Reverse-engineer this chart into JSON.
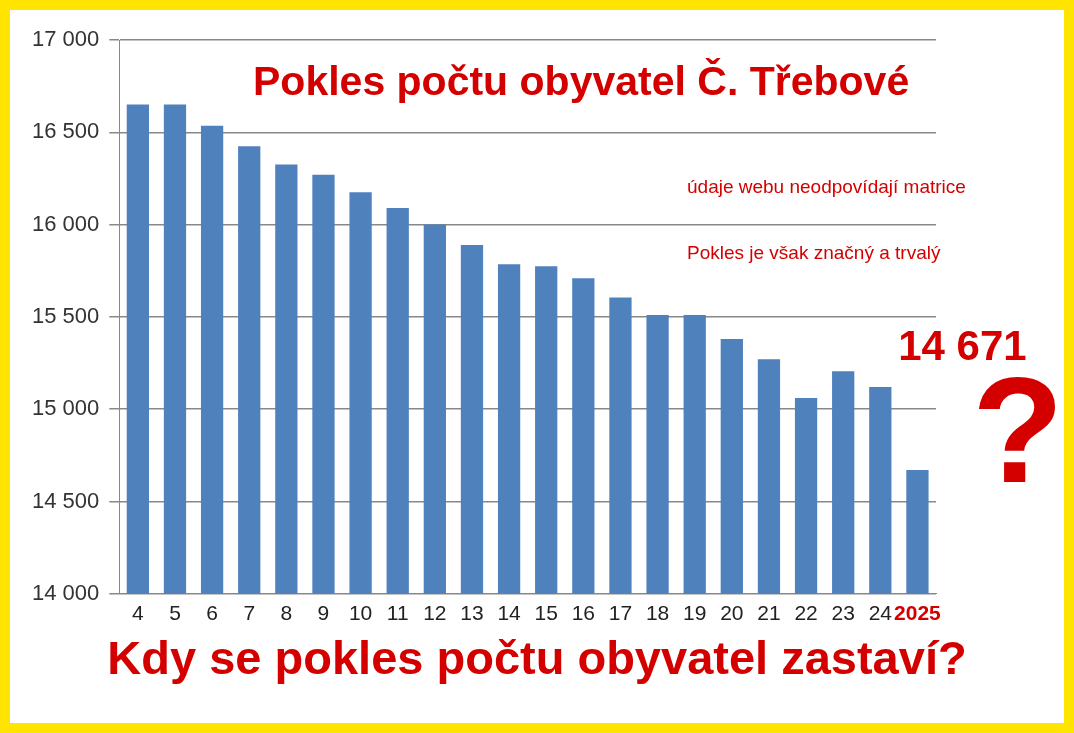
{
  "chart_data": {
    "type": "bar",
    "title": "Pokles počtu obyvatel Č. Třebové",
    "subtitle": "Kdy se pokles počtu obyvatel zastaví?",
    "categories": [
      "4",
      "5",
      "6",
      "7",
      "8",
      "9",
      "10",
      "11",
      "12",
      "13",
      "14",
      "15",
      "16",
      "17",
      "18",
      "19",
      "20",
      "21",
      "22",
      "23",
      "24",
      "2025"
    ],
    "values": [
      16650,
      16650,
      16535,
      16425,
      16325,
      16270,
      16175,
      16090,
      16000,
      15890,
      15785,
      15775,
      15710,
      15605,
      15510,
      15510,
      15380,
      15270,
      15060,
      15205,
      15120,
      14671
    ],
    "color": "#4f81bd",
    "ylim": [
      14000,
      17000
    ],
    "yticks": [
      {
        "value": 14000,
        "label": "14 000"
      },
      {
        "value": 14500,
        "label": "14 500"
      },
      {
        "value": 15000,
        "label": "15 000"
      },
      {
        "value": 15500,
        "label": "15 500"
      },
      {
        "value": 16000,
        "label": "16 000"
      },
      {
        "value": 16500,
        "label": "16 500"
      },
      {
        "value": 17000,
        "label": "17 000"
      }
    ],
    "grid": "y",
    "annotations": [
      "údaje webu neodpovídají matrice",
      "Pokles je však značný a trvalý",
      {
        "text": "14 671",
        "x": "2025",
        "y": 14671
      },
      "?"
    ]
  }
}
